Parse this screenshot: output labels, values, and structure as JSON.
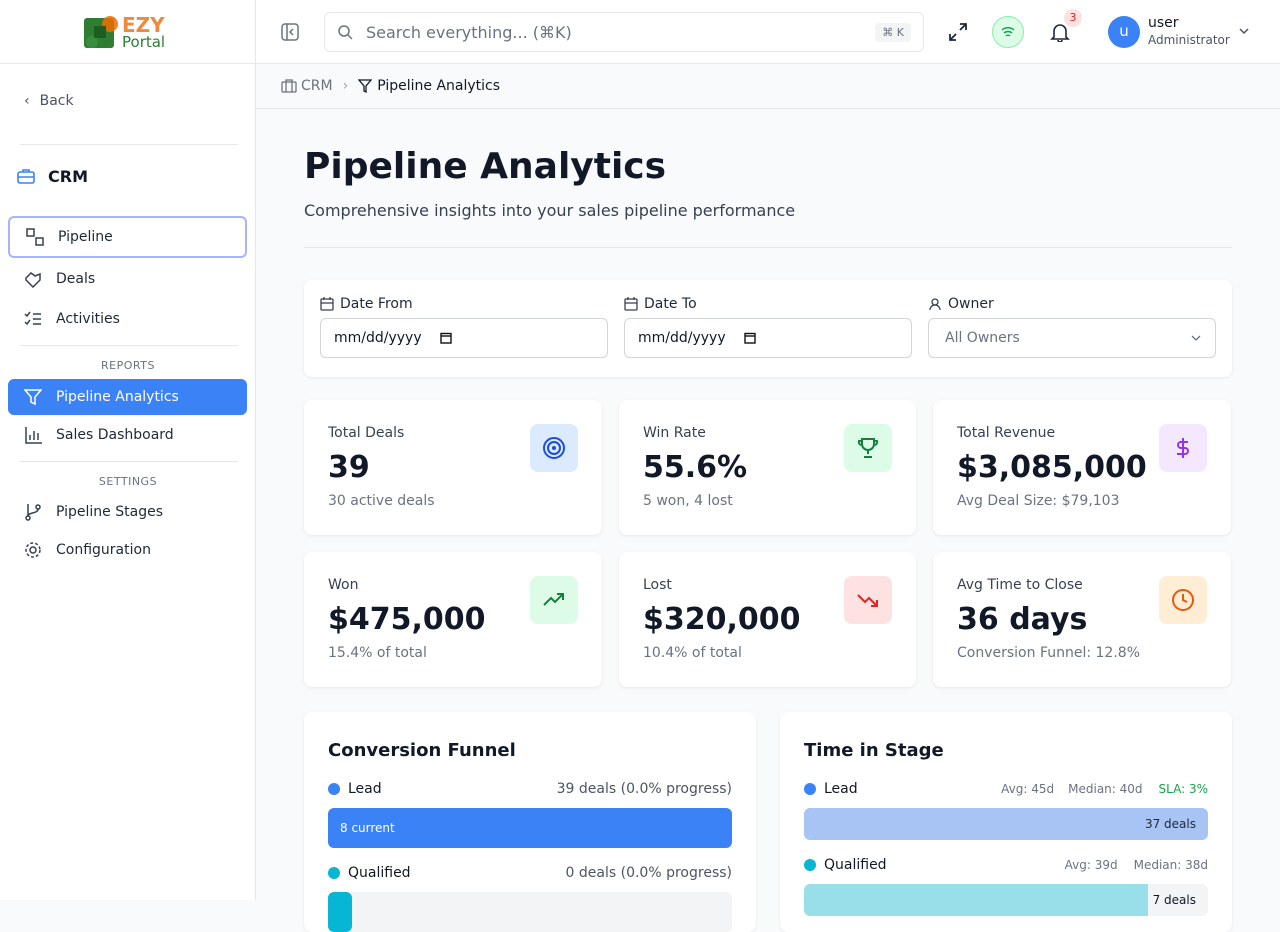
{
  "logo": {
    "line1": "EZY",
    "line2": "Portal"
  },
  "search": {
    "placeholder": "Search everything... (⌘K)",
    "shortcut": "⌘ K"
  },
  "notifications": {
    "count": "3"
  },
  "user": {
    "avatar": "u",
    "name": "user",
    "role": "Administrator"
  },
  "sidebar": {
    "back": "Back",
    "section": "CRM",
    "items": [
      "Pipeline",
      "Deals",
      "Activities"
    ],
    "reports_heading": "REPORTS",
    "reports": [
      "Pipeline Analytics",
      "Sales Dashboard"
    ],
    "settings_heading": "SETTINGS",
    "settings": [
      "Pipeline Stages",
      "Configuration"
    ]
  },
  "breadcrumb": [
    "CRM",
    "Pipeline Analytics"
  ],
  "header": {
    "title": "Pipeline Analytics",
    "subtitle": "Comprehensive insights into your sales pipeline performance"
  },
  "filters": [
    {
      "label": "Date From",
      "value": "mm/dd/yyyy"
    },
    {
      "label": "Date To",
      "value": "mm/dd/yyyy"
    },
    {
      "label": "Owner",
      "value": "All Owners"
    }
  ],
  "stats": [
    {
      "label": "Total Deals",
      "value": "39",
      "note": "30 active deals"
    },
    {
      "label": "Win Rate",
      "value": "55.6%",
      "note": "5 won, 4 lost"
    },
    {
      "label": "Total Revenue",
      "value": "$3,085,000",
      "note": "Avg Deal Size: $79,103"
    },
    {
      "label": "Won",
      "value": "$475,000",
      "note": "15.4% of total"
    },
    {
      "label": "Lost",
      "value": "$320,000",
      "note": "10.4% of total"
    },
    {
      "label": "Avg Time to Close",
      "value": "36 days",
      "note": "Conversion Funnel: 12.8%"
    }
  ],
  "funnel": {
    "title": "Conversion Funnel",
    "stages": [
      {
        "name": "Lead",
        "summary": "39 deals (0.0% progress)",
        "bar_label": "8 current"
      },
      {
        "name": "Qualified",
        "summary": "0 deals (0.0% progress)"
      }
    ]
  },
  "time_in_stage": {
    "title": "Time in Stage",
    "stages": [
      {
        "name": "Lead",
        "avg": "Avg: 45d",
        "median": "Median: 40d",
        "sla": "SLA: 3%",
        "bar_label": "37 deals"
      },
      {
        "name": "Qualified",
        "avg": "Avg: 39d",
        "median": "Median: 38d",
        "bar_label": "7 deals"
      }
    ]
  }
}
